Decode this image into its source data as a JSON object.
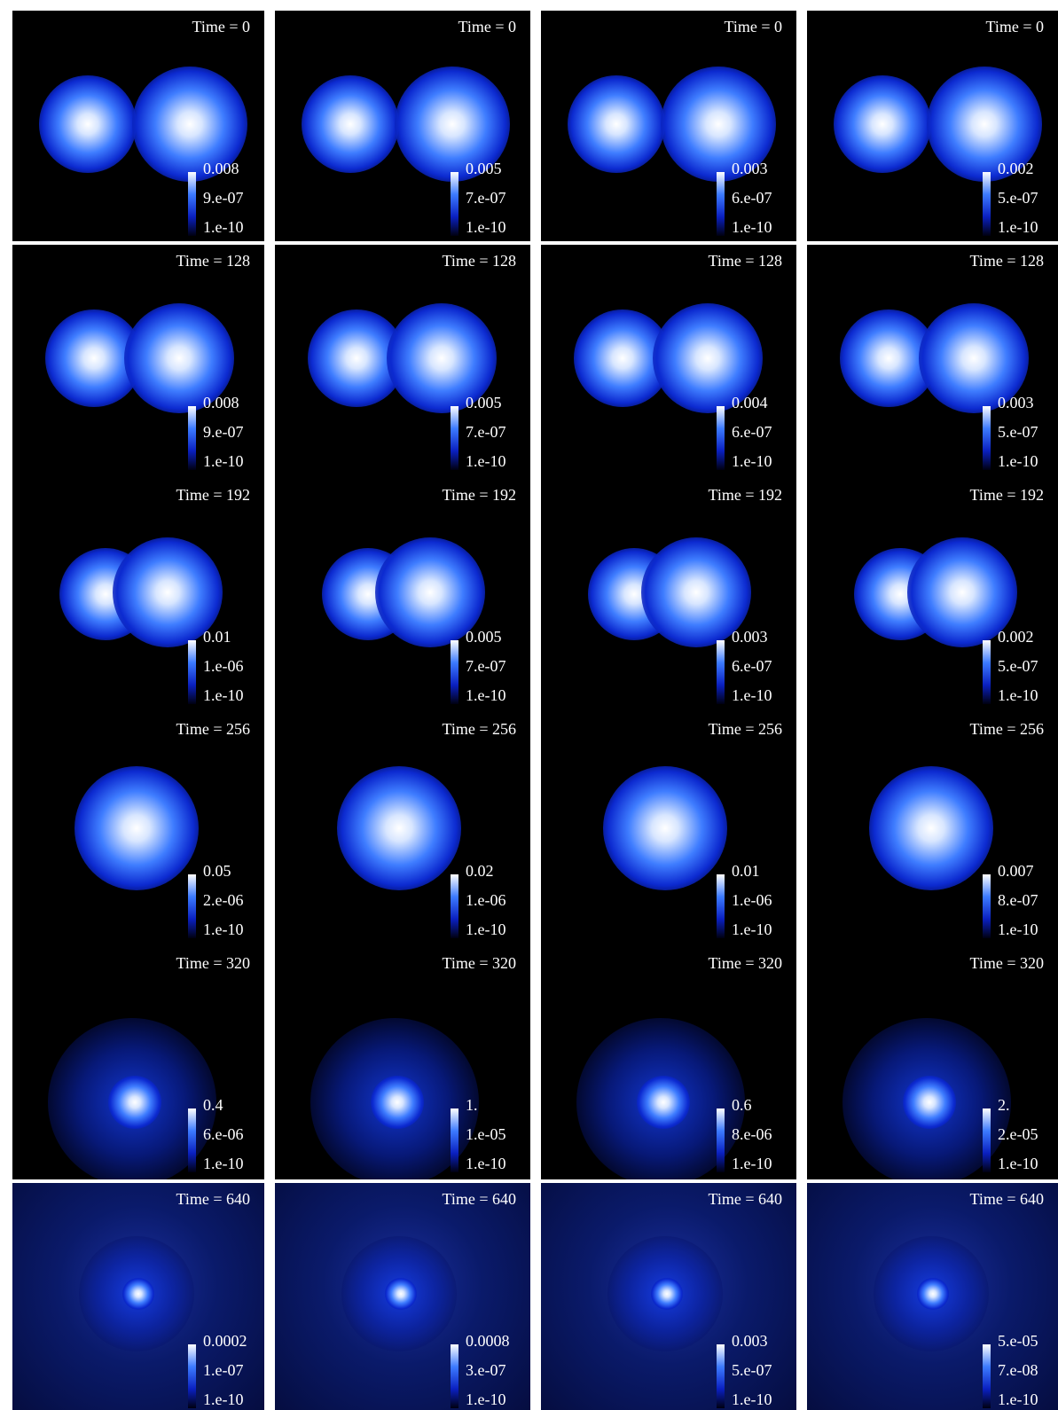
{
  "rows": [
    {
      "panels": [
        {
          "time": "Time = 0",
          "colorbar": [
            "0.008",
            "9.e-07",
            "1.e-10"
          ]
        },
        {
          "time": "Time = 0",
          "colorbar": [
            "0.005",
            "7.e-07",
            "1.e-10"
          ]
        },
        {
          "time": "Time = 0",
          "colorbar": [
            "0.003",
            "6.e-07",
            "1.e-10"
          ]
        },
        {
          "time": "Time = 0",
          "colorbar": [
            "0.002",
            "5.e-07",
            "1.e-10"
          ]
        }
      ]
    },
    {
      "panels": [
        {
          "time": "Time = 128",
          "colorbar": [
            "0.008",
            "9.e-07",
            "1.e-10"
          ]
        },
        {
          "time": "Time = 128",
          "colorbar": [
            "0.005",
            "7.e-07",
            "1.e-10"
          ]
        },
        {
          "time": "Time = 128",
          "colorbar": [
            "0.004",
            "6.e-07",
            "1.e-10"
          ]
        },
        {
          "time": "Time = 128",
          "colorbar": [
            "0.003",
            "5.e-07",
            "1.e-10"
          ]
        }
      ]
    },
    {
      "panels": [
        {
          "time": "Time = 192",
          "colorbar": [
            "0.01",
            "1.e-06",
            "1.e-10"
          ]
        },
        {
          "time": "Time = 192",
          "colorbar": [
            "0.005",
            "7.e-07",
            "1.e-10"
          ]
        },
        {
          "time": "Time = 192",
          "colorbar": [
            "0.003",
            "6.e-07",
            "1.e-10"
          ]
        },
        {
          "time": "Time = 192",
          "colorbar": [
            "0.002",
            "5.e-07",
            "1.e-10"
          ]
        }
      ]
    },
    {
      "panels": [
        {
          "time": "Time = 256",
          "colorbar": [
            "0.05",
            "2.e-06",
            "1.e-10"
          ]
        },
        {
          "time": "Time = 256",
          "colorbar": [
            "0.02",
            "1.e-06",
            "1.e-10"
          ]
        },
        {
          "time": "Time = 256",
          "colorbar": [
            "0.01",
            "1.e-06",
            "1.e-10"
          ]
        },
        {
          "time": "Time = 256",
          "colorbar": [
            "0.007",
            "8.e-07",
            "1.e-10"
          ]
        }
      ]
    },
    {
      "panels": [
        {
          "time": "Time = 320",
          "colorbar": [
            "0.4",
            "6.e-06",
            "1.e-10"
          ]
        },
        {
          "time": "Time = 320",
          "colorbar": [
            "1.",
            "1.e-05",
            "1.e-10"
          ]
        },
        {
          "time": "Time = 320",
          "colorbar": [
            "0.6",
            "8.e-06",
            "1.e-10"
          ]
        },
        {
          "time": "Time = 320",
          "colorbar": [
            "2.",
            "2.e-05",
            "1.e-10"
          ]
        }
      ]
    },
    {
      "panels": [
        {
          "time": "Time = 640",
          "colorbar": [
            "0.0002",
            "1.e-07",
            "1.e-10"
          ]
        },
        {
          "time": "Time = 640",
          "colorbar": [
            "0.0008",
            "3.e-07",
            "1.e-10"
          ]
        },
        {
          "time": "Time = 640",
          "colorbar": [
            "0.003",
            "5.e-07",
            "1.e-10"
          ]
        },
        {
          "time": "Time = 640",
          "colorbar": [
            "5.e-05",
            "7.e-08",
            "1.e-10"
          ]
        }
      ]
    }
  ]
}
